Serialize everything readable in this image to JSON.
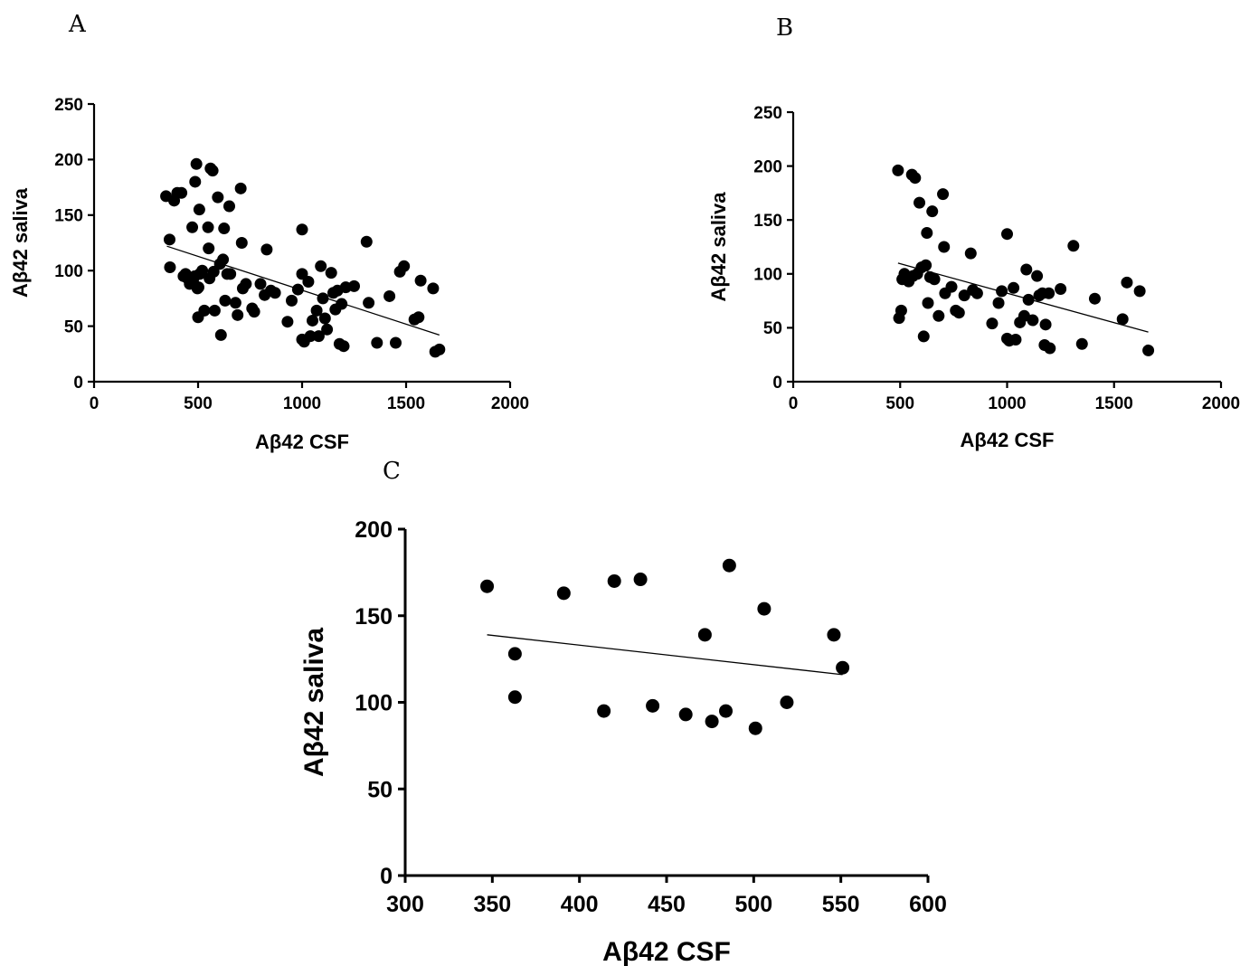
{
  "panels": [
    "A",
    "B",
    "C"
  ],
  "chart_data": [
    {
      "type": "scatter",
      "title": "A",
      "xlabel": "Aβ42 CSF",
      "ylabel": "Aβ42 saliva",
      "xlim": [
        0,
        2000
      ],
      "ylim": [
        0,
        250
      ],
      "xticks": [
        0,
        500,
        1000,
        1500,
        2000
      ],
      "yticks": [
        0,
        50,
        100,
        150,
        200,
        250
      ],
      "grid": false,
      "regression_line": {
        "x": [
          350,
          1660
        ],
        "y": [
          122,
          42
        ]
      },
      "points": [
        [
          346,
          167
        ],
        [
          363,
          128
        ],
        [
          365,
          103
        ],
        [
          385,
          163
        ],
        [
          400,
          170
        ],
        [
          420,
          170
        ],
        [
          430,
          95
        ],
        [
          440,
          97
        ],
        [
          450,
          93
        ],
        [
          460,
          88
        ],
        [
          472,
          139
        ],
        [
          476,
          90
        ],
        [
          484,
          95
        ],
        [
          486,
          180
        ],
        [
          492,
          196
        ],
        [
          497,
          84
        ],
        [
          500,
          58
        ],
        [
          502,
          85
        ],
        [
          506,
          155
        ],
        [
          508,
          97
        ],
        [
          515,
          98
        ],
        [
          520,
          100
        ],
        [
          530,
          64
        ],
        [
          548,
          139
        ],
        [
          551,
          120
        ],
        [
          555,
          93
        ],
        [
          560,
          192
        ],
        [
          570,
          190
        ],
        [
          575,
          99
        ],
        [
          580,
          64
        ],
        [
          595,
          166
        ],
        [
          605,
          106
        ],
        [
          610,
          42
        ],
        [
          620,
          110
        ],
        [
          625,
          138
        ],
        [
          630,
          73
        ],
        [
          640,
          97
        ],
        [
          650,
          158
        ],
        [
          655,
          97
        ],
        [
          680,
          71
        ],
        [
          690,
          60
        ],
        [
          705,
          174
        ],
        [
          710,
          125
        ],
        [
          715,
          84
        ],
        [
          730,
          88
        ],
        [
          760,
          66
        ],
        [
          770,
          63
        ],
        [
          800,
          88
        ],
        [
          820,
          78
        ],
        [
          830,
          119
        ],
        [
          850,
          82
        ],
        [
          870,
          80
        ],
        [
          930,
          54
        ],
        [
          950,
          73
        ],
        [
          980,
          83
        ],
        [
          1000,
          137
        ],
        [
          1000,
          97
        ],
        [
          1000,
          38
        ],
        [
          1010,
          36
        ],
        [
          1030,
          90
        ],
        [
          1040,
          41
        ],
        [
          1050,
          55
        ],
        [
          1070,
          64
        ],
        [
          1080,
          41
        ],
        [
          1090,
          104
        ],
        [
          1100,
          75
        ],
        [
          1110,
          57
        ],
        [
          1120,
          47
        ],
        [
          1140,
          98
        ],
        [
          1150,
          80
        ],
        [
          1160,
          65
        ],
        [
          1170,
          82
        ],
        [
          1180,
          34
        ],
        [
          1190,
          70
        ],
        [
          1200,
          32
        ],
        [
          1210,
          85
        ],
        [
          1250,
          86
        ],
        [
          1310,
          126
        ],
        [
          1320,
          71
        ],
        [
          1360,
          35
        ],
        [
          1420,
          77
        ],
        [
          1450,
          35
        ],
        [
          1470,
          99
        ],
        [
          1490,
          104
        ],
        [
          1540,
          56
        ],
        [
          1560,
          58
        ],
        [
          1570,
          91
        ],
        [
          1630,
          84
        ],
        [
          1640,
          27
        ],
        [
          1660,
          29
        ]
      ]
    },
    {
      "type": "scatter",
      "title": "B",
      "xlabel": "Aβ42 CSF",
      "ylabel": "Aβ42 saliva",
      "xlim": [
        0,
        2000
      ],
      "ylim": [
        0,
        250
      ],
      "xticks": [
        0,
        500,
        1000,
        1500,
        2000
      ],
      "yticks": [
        0,
        50,
        100,
        150,
        200,
        250
      ],
      "grid": false,
      "regression_line": {
        "x": [
          490,
          1660
        ],
        "y": [
          110,
          46
        ]
      },
      "points": [
        [
          490,
          196
        ],
        [
          495,
          59
        ],
        [
          505,
          66
        ],
        [
          510,
          95
        ],
        [
          520,
          100
        ],
        [
          530,
          97
        ],
        [
          540,
          93
        ],
        [
          555,
          192
        ],
        [
          560,
          98
        ],
        [
          570,
          189
        ],
        [
          580,
          100
        ],
        [
          590,
          166
        ],
        [
          600,
          106
        ],
        [
          610,
          42
        ],
        [
          620,
          108
        ],
        [
          625,
          138
        ],
        [
          630,
          73
        ],
        [
          640,
          97
        ],
        [
          650,
          158
        ],
        [
          660,
          95
        ],
        [
          680,
          61
        ],
        [
          700,
          174
        ],
        [
          705,
          125
        ],
        [
          710,
          82
        ],
        [
          740,
          88
        ],
        [
          760,
          66
        ],
        [
          775,
          64
        ],
        [
          800,
          80
        ],
        [
          830,
          119
        ],
        [
          840,
          85
        ],
        [
          860,
          82
        ],
        [
          930,
          54
        ],
        [
          960,
          73
        ],
        [
          975,
          84
        ],
        [
          1000,
          137
        ],
        [
          1000,
          40
        ],
        [
          1010,
          38
        ],
        [
          1030,
          87
        ],
        [
          1040,
          39
        ],
        [
          1060,
          55
        ],
        [
          1080,
          61
        ],
        [
          1090,
          104
        ],
        [
          1100,
          76
        ],
        [
          1120,
          57
        ],
        [
          1140,
          98
        ],
        [
          1150,
          80
        ],
        [
          1165,
          82
        ],
        [
          1175,
          34
        ],
        [
          1180,
          53
        ],
        [
          1195,
          82
        ],
        [
          1200,
          31
        ],
        [
          1250,
          86
        ],
        [
          1310,
          126
        ],
        [
          1350,
          35
        ],
        [
          1410,
          77
        ],
        [
          1540,
          58
        ],
        [
          1560,
          92
        ],
        [
          1620,
          84
        ],
        [
          1660,
          29
        ]
      ]
    },
    {
      "type": "scatter",
      "title": "C",
      "xlabel": "Aβ42 CSF",
      "ylabel": "Aβ42 saliva",
      "xlim": [
        300,
        600
      ],
      "ylim": [
        0,
        200
      ],
      "xticks": [
        300,
        350,
        400,
        450,
        500,
        550,
        600
      ],
      "yticks": [
        0,
        50,
        100,
        150,
        200
      ],
      "grid": false,
      "regression_line": {
        "x": [
          347,
          551
        ],
        "y": [
          139,
          116
        ]
      },
      "points": [
        [
          347,
          167
        ],
        [
          363,
          128
        ],
        [
          363,
          103
        ],
        [
          391,
          163
        ],
        [
          414,
          95
        ],
        [
          420,
          170
        ],
        [
          435,
          171
        ],
        [
          442,
          98
        ],
        [
          461,
          93
        ],
        [
          472,
          139
        ],
        [
          476,
          89
        ],
        [
          484,
          95
        ],
        [
          486,
          179
        ],
        [
          501,
          85
        ],
        [
          506,
          154
        ],
        [
          519,
          100
        ],
        [
          546,
          139
        ],
        [
          551,
          120
        ]
      ]
    }
  ]
}
